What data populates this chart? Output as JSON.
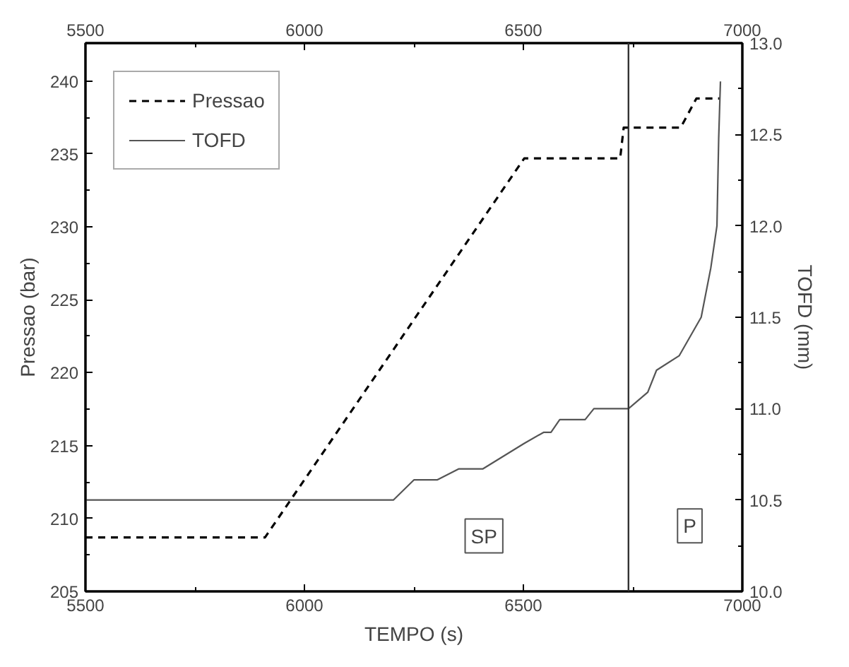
{
  "chart_data": {
    "type": "line",
    "xlabel": "TEMPO (s)",
    "ylabel": "Pressao (bar)",
    "y2label": "TOFD (mm)",
    "xlim": [
      5500,
      7000
    ],
    "xticks": [
      5500,
      6000,
      6500,
      7000
    ],
    "x2lim": [
      5500,
      7000
    ],
    "x2ticks": [
      5500,
      6000,
      6500,
      7000
    ],
    "ylim": [
      205,
      242.6
    ],
    "yticks": [
      205,
      210,
      215,
      220,
      225,
      230,
      235,
      240
    ],
    "y2lim": [
      10.0,
      13.0
    ],
    "y2ticks": [
      {
        "value": 10.0,
        "label": "10.0"
      },
      {
        "value": 10.5,
        "label": "10.5"
      },
      {
        "value": 11.0,
        "label": "11.0"
      },
      {
        "value": 11.5,
        "label": "11.5"
      },
      {
        "value": 12.0,
        "label": "12.0"
      },
      {
        "value": 12.5,
        "label": "12.5"
      },
      {
        "value": 13.0,
        "label": "13.0"
      }
    ],
    "series": [
      {
        "name": "Pressao",
        "color": "#000000",
        "line_style": "dashed",
        "x": [
          5500,
          5910,
          6502,
          6721,
          6729,
          6859,
          6895,
          6950
        ],
        "values": [
          208.7,
          208.7,
          234.7,
          234.7,
          236.8,
          236.8,
          238.8,
          238.8
        ]
      },
      {
        "name": "TOFD",
        "color": "#555555",
        "line_style": "solid",
        "axis": "y2",
        "x": [
          5500,
          6203,
          6250,
          6303,
          6352,
          6407,
          6502,
          6546,
          6563,
          6583,
          6641,
          6661,
          6740,
          6784,
          6804,
          6856,
          6906,
          6928,
          6942,
          6946,
          6950
        ],
        "values": [
          10.5,
          10.5,
          10.61,
          10.61,
          10.67,
          10.67,
          10.81,
          10.87,
          10.87,
          10.94,
          10.94,
          11.0,
          11.0,
          11.09,
          11.21,
          11.29,
          11.5,
          11.77,
          12.0,
          12.48,
          12.79
        ]
      }
    ],
    "ref_lines": [
      {
        "axis": "x",
        "value": 6740,
        "color": "#333333"
      }
    ],
    "annotations": [
      {
        "text": "SP",
        "x": 6410,
        "y": 208.8
      },
      {
        "text": "P",
        "x": 6880,
        "y": 209.5
      }
    ],
    "legend": "top left",
    "grid": false
  }
}
